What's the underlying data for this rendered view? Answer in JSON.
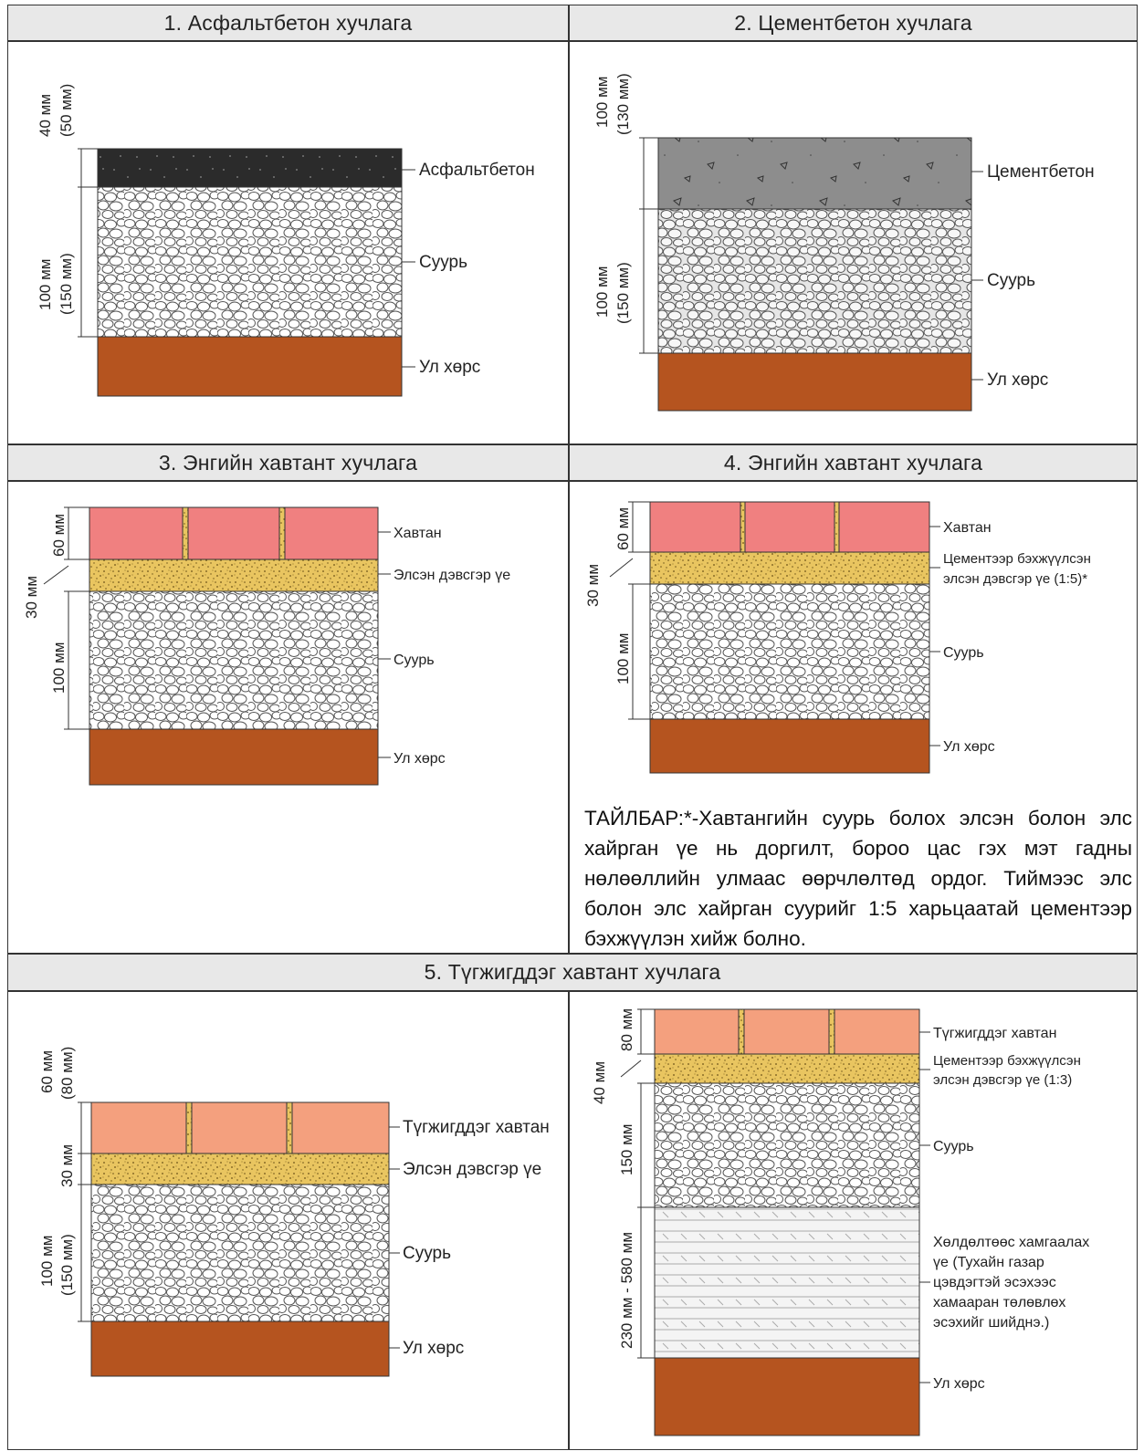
{
  "panels": {
    "p1": {
      "title": "1.  Асфальтбетон хучлага",
      "labels": [
        "Асфальтбетон",
        "Суурь",
        "Ул хөрс"
      ],
      "dims": [
        [
          "40 мм",
          "(50 мм)"
        ],
        [
          "100 мм",
          "(150 мм)"
        ]
      ]
    },
    "p2": {
      "title": "2. Цементбетон хучлага",
      "labels": [
        "Цементбетон",
        "Суурь",
        "Ул хөрс"
      ],
      "dims": [
        [
          "100 мм",
          "(130 мм)"
        ],
        [
          "100 мм",
          "(150 мм)"
        ]
      ]
    },
    "p3": {
      "title": "3. Энгийн хавтант хучлага",
      "labels": [
        "Хавтан",
        "Элсэн дэвсгэр үе",
        "Суурь",
        "Ул хөрс"
      ],
      "dims": [
        "60 мм",
        "30 мм",
        "100 мм"
      ]
    },
    "p4": {
      "title": "4. Энгийн хавтант хучлага",
      "labels": [
        "Хавтан",
        "Цементээр бэхжүүлсэн",
        "элсэн дэвсгэр үе (1:5)*",
        "Суурь",
        "Ул хөрс"
      ],
      "dims": [
        "60 мм",
        "30 мм",
        "100 мм"
      ],
      "note": "ТАЙЛБАР:*-Хавтангийн суурь болох элсэн болон элс хайрган үе нь доргилт, бороо цас гэх мэт гадны нөлөөллийн улмаас өөрчлөлтөд ордог. Тиймээс элс болон элс хайрган суурийг 1:5 харьцаатай цементээр бэхжүүлэн хийж болно."
    },
    "p5": {
      "title": "5. Түгжигддэг хавтант хучлага",
      "left": {
        "labels": [
          "Түгжигддэг хавтан",
          "Элсэн дэвсгэр үе",
          "Суурь",
          "Ул хөрс"
        ],
        "dims": [
          [
            "60 мм",
            "(80 мм)"
          ],
          "30 мм",
          [
            "100 мм",
            "(150 мм)"
          ]
        ]
      },
      "right": {
        "labels": [
          "Түгжигддэг хавтан",
          "Цементээр бэхжүүлсэн",
          "элсэн дэвсгэр үе (1:3)",
          "Суурь",
          "Хөлдөлтөөс хамгаалах",
          "үе (Тухайн газар",
          "цэвдэгтэй эсэхээс",
          "хамааран төлөвлөх",
          "эсэхийг шийднэ.)",
          "Ул хөрс"
        ],
        "dims": [
          "80 мм",
          "40 мм",
          "150 мм",
          "230 мм - 580 мм"
        ]
      }
    }
  },
  "colors": {
    "asphalt": "#2b2b2b",
    "concrete": "#8d8d8d",
    "soil": "#b5541f",
    "tile_pink": "#f08080",
    "tile_salmon": "#f4a07e",
    "sand": "#e9c560",
    "header_bg": "#e8e8e8"
  }
}
